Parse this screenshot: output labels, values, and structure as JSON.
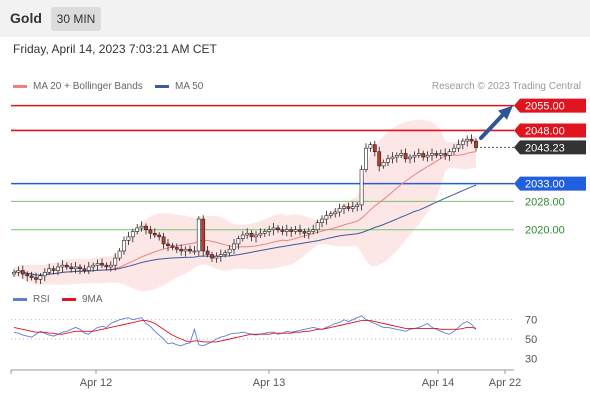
{
  "header": {
    "title": "Gold",
    "timeframe": "30 MIN"
  },
  "datetime": "Friday, April 14, 2023 7:03:21 AM CET",
  "legend": {
    "ma20": "MA 20 + Bollinger Bands",
    "ma50": "MA 50",
    "rsi": "RSI",
    "rsi_ma": "9MA",
    "credit": "Research © 2023 Trading Central"
  },
  "colors": {
    "resistance": "#e0141e",
    "support": "#1f5fe0",
    "target": "#74c374",
    "ma20": "#f08080",
    "ma50": "#3d5a99",
    "band": "#fde0e0",
    "up": "#ffffff",
    "down": "#c0392b",
    "rsi": "#5b7fdb",
    "rsi_ma": "#e0141e",
    "arrow": "#2f5597"
  },
  "chart_data": {
    "type": "candlestick",
    "symbol": "Gold",
    "interval": "30 MIN",
    "ylim": [
      2003,
      2058
    ],
    "x_ticks": [
      "Apr 12",
      "Apr 13",
      "Apr 14",
      "Apr 22"
    ],
    "levels": [
      {
        "label": "2055.00",
        "value": 2055.0,
        "kind": "resistance"
      },
      {
        "label": "2048.00",
        "value": 2048.0,
        "kind": "resistance"
      },
      {
        "label": "2043.23",
        "value": 2043.23,
        "kind": "last"
      },
      {
        "label": "2033.00",
        "value": 2033.0,
        "kind": "support"
      },
      {
        "label": "2028.00",
        "value": 2028.0,
        "kind": "target"
      },
      {
        "label": "2020.00",
        "value": 2020.0,
        "kind": "target"
      }
    ],
    "closes": [
      2008,
      2008.5,
      2007.5,
      2007,
      2006.5,
      2006,
      2007,
      2008,
      2009,
      2008.5,
      2009.5,
      2010,
      2009.5,
      2009,
      2009.5,
      2009,
      2008.5,
      2009.5,
      2010,
      2010.5,
      2010,
      2009.5,
      2010,
      2012,
      2014,
      2017,
      2018,
      2019.5,
      2020.5,
      2021,
      2020,
      2019,
      2018.5,
      2018,
      2016,
      2015.5,
      2015,
      2014.5,
      2014,
      2014.5,
      2014,
      2014,
      2023,
      2014,
      2013,
      2012,
      2012.5,
      2013,
      2013.5,
      2014.5,
      2016,
      2017.5,
      2018.5,
      2019,
      2018,
      2018.5,
      2019,
      2019.5,
      2020,
      2020.5,
      2020,
      2019.5,
      2020,
      2019.5,
      2020,
      2019.5,
      2019,
      2019.5,
      2020,
      2022,
      2023,
      2024,
      2024.5,
      2025,
      2026,
      2026.5,
      2026,
      2026.5,
      2027,
      2037,
      2043,
      2044,
      2042,
      2038,
      2039,
      2040,
      2040.5,
      2041,
      2041.5,
      2040,
      2040.5,
      2041,
      2041.5,
      2040.5,
      2041,
      2041.5,
      2041,
      2041.5,
      2041,
      2042,
      2043,
      2044,
      2045,
      2045.5,
      2045,
      2043.2
    ],
    "rsi": {
      "ylim": [
        20,
        80
      ],
      "ticks": [
        70,
        50,
        30
      ],
      "values": [
        57,
        56,
        54,
        53,
        52,
        55,
        58,
        56,
        54,
        53,
        55,
        57,
        58,
        60,
        62,
        60,
        56,
        55,
        59,
        62,
        63,
        62,
        66,
        68,
        70,
        71,
        72,
        70,
        71,
        72,
        66,
        63,
        58,
        54,
        50,
        45,
        46,
        44,
        43,
        45,
        46,
        60,
        44,
        43,
        45,
        47,
        50,
        52,
        53,
        55,
        56,
        56,
        57,
        56,
        55,
        54,
        55,
        56,
        57,
        57,
        55,
        56,
        58,
        57,
        58,
        59,
        60,
        61,
        62,
        61,
        60,
        62,
        64,
        66,
        67,
        70,
        68,
        70,
        72,
        74,
        70,
        68,
        66,
        64,
        62,
        62,
        61,
        60,
        59,
        58,
        60,
        61,
        62,
        64,
        66,
        62,
        60,
        58,
        56,
        55,
        58,
        62,
        66,
        68,
        65,
        60
      ],
      "ma_values": [
        62,
        61,
        60,
        59,
        58,
        57,
        57,
        57,
        56,
        56,
        55,
        55,
        56,
        57,
        58,
        58,
        58,
        58,
        58,
        59,
        60,
        61,
        62,
        63,
        64,
        65,
        66,
        67,
        68,
        69,
        69,
        68,
        66,
        63,
        60,
        57,
        54,
        52,
        50,
        48,
        47,
        48,
        48,
        47,
        47,
        47,
        47,
        48,
        49,
        50,
        51,
        52,
        53,
        54,
        55,
        55,
        55,
        55,
        55,
        56,
        56,
        56,
        56,
        56,
        57,
        57,
        58,
        58,
        59,
        60,
        60,
        61,
        62,
        63,
        64,
        65,
        66,
        67,
        68,
        69,
        69,
        69,
        68,
        67,
        66,
        65,
        64,
        63,
        62,
        61,
        61,
        61,
        61,
        61,
        61,
        61,
        61,
        60,
        60,
        60,
        60,
        60,
        61,
        62,
        62,
        61
      ]
    }
  }
}
